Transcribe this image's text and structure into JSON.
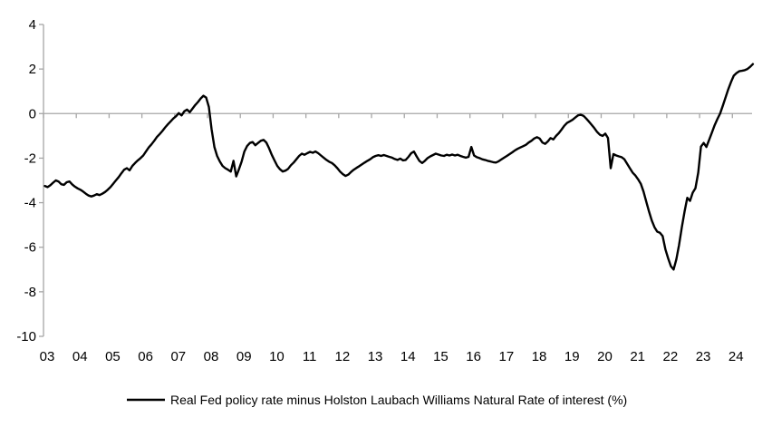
{
  "chart_data": {
    "type": "line",
    "title": "",
    "legend": [
      "Real Fed policy rate minus Holston Laubach Williams Natural Rate of interest (%)"
    ],
    "legend_position": "bottom-center",
    "grid": false,
    "zero_axis_line": true,
    "xlim": [
      2003,
      2024.6
    ],
    "ylim": [
      -10,
      4
    ],
    "y_ticks": [
      4,
      2,
      0,
      -2,
      -4,
      -6,
      -8,
      -10
    ],
    "x_tick_years": [
      2003,
      2004,
      2005,
      2006,
      2007,
      2008,
      2009,
      2010,
      2011,
      2012,
      2013,
      2014,
      2015,
      2016,
      2017,
      2018,
      2019,
      2020,
      2021,
      2022,
      2023,
      2024
    ],
    "x_tick_labels": [
      "03",
      "04",
      "05",
      "06",
      "07",
      "08",
      "09",
      "10",
      "11",
      "12",
      "13",
      "14",
      "15",
      "16",
      "17",
      "18",
      "19",
      "20",
      "21",
      "22",
      "23",
      "24"
    ],
    "colors": {
      "series": "#000000",
      "axis": "#a6a6a6",
      "text": "#000000",
      "background": "#ffffff"
    },
    "series": [
      {
        "name": "Real Fed policy rate minus Holston Laubach Williams Natural Rate of interest (%)",
        "start_year": 2003,
        "frequency": "monthly",
        "values": [
          -3.25,
          -3.3,
          -3.22,
          -3.1,
          -3.0,
          -3.05,
          -3.17,
          -3.2,
          -3.08,
          -3.05,
          -3.18,
          -3.28,
          -3.36,
          -3.42,
          -3.5,
          -3.6,
          -3.68,
          -3.72,
          -3.68,
          -3.62,
          -3.66,
          -3.6,
          -3.52,
          -3.42,
          -3.3,
          -3.15,
          -3.0,
          -2.85,
          -2.68,
          -2.52,
          -2.45,
          -2.55,
          -2.35,
          -2.22,
          -2.1,
          -2.0,
          -1.88,
          -1.7,
          -1.52,
          -1.38,
          -1.22,
          -1.05,
          -0.92,
          -0.78,
          -0.62,
          -0.48,
          -0.35,
          -0.22,
          -0.12,
          0.02,
          -0.08,
          0.1,
          0.18,
          0.06,
          0.22,
          0.38,
          0.52,
          0.68,
          0.8,
          0.72,
          0.3,
          -0.7,
          -1.5,
          -1.9,
          -2.15,
          -2.35,
          -2.45,
          -2.52,
          -2.6,
          -2.12,
          -2.82,
          -2.5,
          -2.15,
          -1.7,
          -1.45,
          -1.32,
          -1.28,
          -1.42,
          -1.32,
          -1.22,
          -1.18,
          -1.3,
          -1.55,
          -1.85,
          -2.1,
          -2.35,
          -2.5,
          -2.6,
          -2.56,
          -2.48,
          -2.32,
          -2.2,
          -2.05,
          -1.9,
          -1.8,
          -1.85,
          -1.78,
          -1.72,
          -1.76,
          -1.7,
          -1.78,
          -1.88,
          -1.98,
          -2.08,
          -2.16,
          -2.22,
          -2.32,
          -2.45,
          -2.6,
          -2.72,
          -2.8,
          -2.74,
          -2.62,
          -2.52,
          -2.44,
          -2.36,
          -2.28,
          -2.2,
          -2.12,
          -2.05,
          -1.96,
          -1.9,
          -1.87,
          -1.9,
          -1.86,
          -1.9,
          -1.94,
          -1.98,
          -2.04,
          -2.08,
          -2.02,
          -2.1,
          -2.08,
          -1.94,
          -1.78,
          -1.7,
          -1.92,
          -2.12,
          -2.22,
          -2.12,
          -2.0,
          -1.92,
          -1.86,
          -1.8,
          -1.84,
          -1.88,
          -1.9,
          -1.85,
          -1.88,
          -1.84,
          -1.88,
          -1.85,
          -1.9,
          -1.94,
          -1.98,
          -1.94,
          -1.5,
          -1.88,
          -1.96,
          -2.0,
          -2.05,
          -2.08,
          -2.12,
          -2.15,
          -2.18,
          -2.2,
          -2.14,
          -2.06,
          -1.98,
          -1.9,
          -1.82,
          -1.74,
          -1.65,
          -1.58,
          -1.52,
          -1.46,
          -1.4,
          -1.3,
          -1.22,
          -1.12,
          -1.06,
          -1.12,
          -1.3,
          -1.36,
          -1.25,
          -1.1,
          -1.16,
          -1.0,
          -0.88,
          -0.72,
          -0.55,
          -0.42,
          -0.35,
          -0.28,
          -0.18,
          -0.08,
          -0.05,
          -0.1,
          -0.22,
          -0.36,
          -0.5,
          -0.65,
          -0.82,
          -0.95,
          -1.0,
          -0.9,
          -1.1,
          -2.45,
          -1.82,
          -1.88,
          -1.92,
          -1.96,
          -2.05,
          -2.25,
          -2.45,
          -2.65,
          -2.78,
          -2.95,
          -3.15,
          -3.5,
          -3.95,
          -4.4,
          -4.8,
          -5.1,
          -5.3,
          -5.35,
          -5.5,
          -6.1,
          -6.5,
          -6.85,
          -7.0,
          -6.55,
          -5.9,
          -5.1,
          -4.4,
          -3.78,
          -3.92,
          -3.55,
          -3.35,
          -2.65,
          -1.48,
          -1.32,
          -1.5,
          -1.18,
          -0.85,
          -0.52,
          -0.25,
          0.0,
          0.35,
          0.72,
          1.1,
          1.42,
          1.7,
          1.82,
          1.9,
          1.92,
          1.95,
          2.0,
          2.1,
          2.22
        ]
      }
    ]
  }
}
